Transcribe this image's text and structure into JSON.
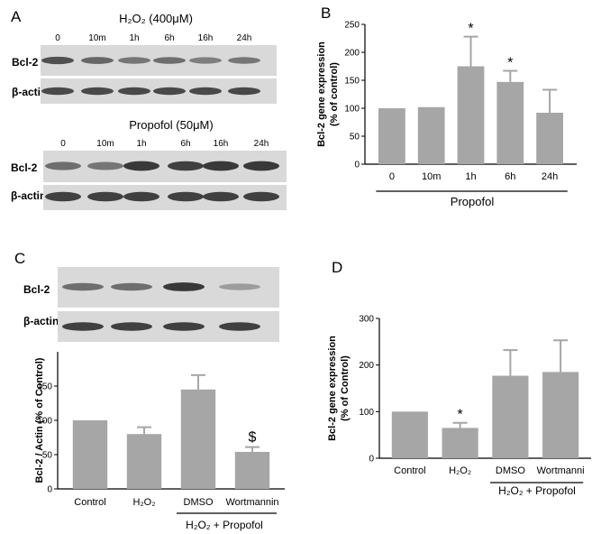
{
  "panels": {
    "A": {
      "letter": "A",
      "blot1": {
        "title": "H₂O₂ (400μM)",
        "lanes": [
          "0",
          "10m",
          "1h",
          "6h",
          "16h",
          "24h"
        ],
        "rows": [
          "Bcl-2",
          "β-actin"
        ],
        "band_intensity": {
          "Bcl-2": [
            0.8,
            0.65,
            0.55,
            0.6,
            0.5,
            0.55
          ],
          "β-actin": [
            0.85,
            0.85,
            0.85,
            0.85,
            0.85,
            0.85
          ]
        }
      },
      "blot2": {
        "title": "Propofol (50μM)",
        "lanes": [
          "0",
          "10m",
          "1h",
          "6h",
          "16h",
          "24h"
        ],
        "rows": [
          "Bcl-2",
          "β-actin"
        ],
        "band_intensity": {
          "Bcl-2": [
            0.6,
            0.55,
            0.95,
            0.9,
            0.95,
            0.95
          ],
          "β-actin": [
            0.9,
            0.9,
            0.9,
            0.9,
            0.9,
            0.9
          ]
        }
      }
    },
    "B": {
      "letter": "B",
      "group_label": "Propofol"
    },
    "C": {
      "letter": "C",
      "blot": {
        "rows": [
          "Bcl-2",
          "β-actin"
        ],
        "band_intensity": {
          "Bcl-2": [
            0.6,
            0.6,
            0.95,
            0.3
          ],
          "β-actin": [
            0.9,
            0.9,
            0.9,
            0.9
          ]
        }
      },
      "group_label": "H₂O₂ + Propofol"
    },
    "D": {
      "letter": "D",
      "group_label": "H₂O₂ + Propofol"
    }
  },
  "chart_data": [
    {
      "id": "B",
      "type": "bar",
      "categories": [
        "0",
        "10m",
        "1h",
        "6h",
        "24h"
      ],
      "values": [
        100,
        102,
        175,
        147,
        92
      ],
      "errors": [
        0,
        0,
        53,
        20,
        41
      ],
      "annotations": [
        "",
        "",
        "*",
        "*",
        ""
      ],
      "ylabel": "Bcl-2 gene expression\n(% of control)",
      "ylim": [
        0,
        250
      ],
      "yticks": [
        0,
        50,
        100,
        150,
        200,
        250
      ],
      "grid": false
    },
    {
      "id": "C",
      "type": "bar",
      "categories": [
        "Control",
        "H₂O₂",
        "DMSO",
        "Wortmannin"
      ],
      "values": [
        100,
        80,
        145,
        54
      ],
      "errors": [
        0,
        10,
        21,
        7
      ],
      "annotations": [
        "",
        "",
        "",
        "$"
      ],
      "ylabel": "Bcl-2 / Actin (% of Control)",
      "ylim": [
        0,
        200
      ],
      "yticks": [
        0,
        50,
        100,
        150
      ],
      "grid": false
    },
    {
      "id": "D",
      "type": "bar",
      "categories": [
        "Control",
        "H₂O₂",
        "DMSO",
        "Wortmanni"
      ],
      "values": [
        100,
        65,
        177,
        185
      ],
      "errors": [
        0,
        11,
        55,
        68
      ],
      "annotations": [
        "",
        "*",
        "",
        ""
      ],
      "ylabel": "Bcl-2 gene expression\n(% of Control)",
      "ylim": [
        0,
        300
      ],
      "yticks": [
        0,
        100,
        200,
        300
      ],
      "grid": false
    }
  ]
}
